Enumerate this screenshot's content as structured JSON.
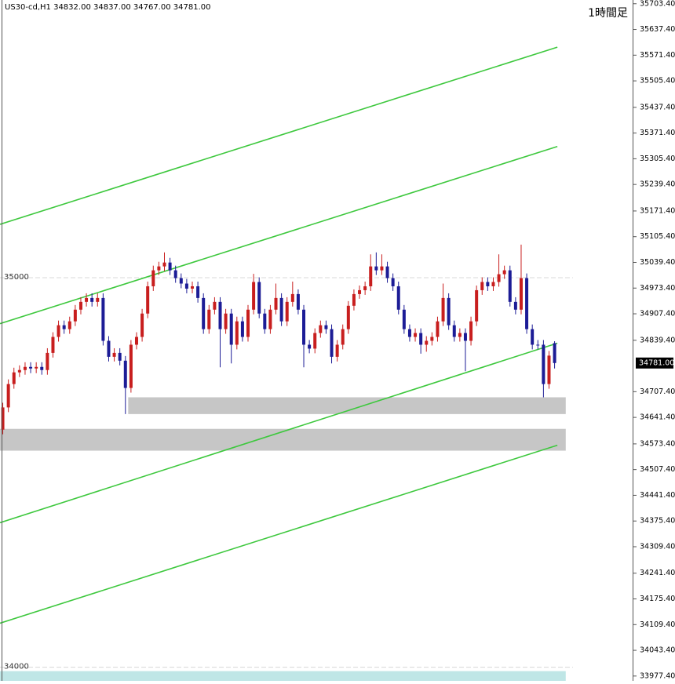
{
  "chart_data": {
    "type": "candlestick",
    "header": "US30-cd,H1  34832.00 34837.00 34767.00 34781.00",
    "title": "1時間足",
    "xlim": [
      -0.5,
      113
    ],
    "ylim": [
      33965,
      35713
    ],
    "yticks": [
      {
        "value": 35703.4,
        "label": "35703.40"
      },
      {
        "value": 35637.4,
        "label": "35637.40"
      },
      {
        "value": 35571.4,
        "label": "35571.40"
      },
      {
        "value": 35505.4,
        "label": "35505.40"
      },
      {
        "value": 35437.4,
        "label": "35437.40"
      },
      {
        "value": 35371.4,
        "label": "35371.40"
      },
      {
        "value": 35305.4,
        "label": "35305.40"
      },
      {
        "value": 35239.4,
        "label": "35239.40"
      },
      {
        "value": 35171.4,
        "label": "35171.40"
      },
      {
        "value": 35105.4,
        "label": "35105.40"
      },
      {
        "value": 35039.4,
        "label": "35039.40"
      },
      {
        "value": 34973.4,
        "label": "34973.40"
      },
      {
        "value": 34907.4,
        "label": "34907.40"
      },
      {
        "value": 34839.4,
        "label": "34839.40"
      },
      {
        "value": 34707.4,
        "label": "34707.40"
      },
      {
        "value": 34641.4,
        "label": "34641.40"
      },
      {
        "value": 34573.4,
        "label": "34573.40"
      },
      {
        "value": 34507.4,
        "label": "34507.40"
      },
      {
        "value": 34441.4,
        "label": "34441.40"
      },
      {
        "value": 34375.4,
        "label": "34375.40"
      },
      {
        "value": 34309.4,
        "label": "34309.40"
      },
      {
        "value": 34241.4,
        "label": "34241.40"
      },
      {
        "value": 34175.4,
        "label": "34175.40"
      },
      {
        "value": 34109.4,
        "label": "34109.40"
      },
      {
        "value": 34043.4,
        "label": "34043.40"
      },
      {
        "value": 33977.4,
        "label": "33977.40"
      }
    ],
    "current_price": {
      "value": 34781,
      "label": "34781.00"
    },
    "up_color": "#c81e1e",
    "down_color": "#1c1c96",
    "levels": [
      {
        "value": 35000,
        "label": "35000"
      },
      {
        "value": 34000,
        "label": "34000"
      }
    ],
    "channel_color": "#3ec83e",
    "channels": [
      {
        "x": [
          -0.5,
          99.5
        ],
        "y": [
          35137,
          35592
        ]
      },
      {
        "x": [
          -0.5,
          99.5
        ],
        "y": [
          34882,
          35337
        ]
      },
      {
        "x": [
          -0.5,
          99.5
        ],
        "y": [
          34371,
          34832
        ]
      },
      {
        "x": [
          -0.5,
          99.5
        ],
        "y": [
          34113,
          34570
        ]
      }
    ],
    "zones": [
      {
        "x": [
          22.5,
          101
        ],
        "y": [
          34650,
          34693
        ],
        "color": "#c6c6c6"
      },
      {
        "x": [
          -0.5,
          101
        ],
        "y": [
          34556,
          34612
        ],
        "color": "#c6c6c6"
      },
      {
        "x": [
          -0.5,
          101
        ],
        "y": [
          33950,
          33990
        ],
        "color": "#bfe6e6"
      }
    ],
    "open": [
      34610,
      34667,
      34727,
      34757,
      34763,
      34771,
      34767,
      34771,
      34763,
      34807,
      34848,
      34878,
      34868,
      34888,
      34918,
      34938,
      34948,
      34938,
      34948,
      34838,
      34797,
      34807,
      34787,
      34717,
      34828,
      34848,
      34908,
      34978,
      35019,
      35029,
      35039,
      35019,
      34999,
      34985,
      34972,
      34978,
      34948,
      34868,
      34918,
      34938,
      34868,
      34908,
      34828,
      34888,
      34848,
      34918,
      34989,
      34908,
      34868,
      34918,
      34948,
      34888,
      34938,
      34958,
      34918,
      34828,
      34818,
      34858,
      34878,
      34868,
      34797,
      34828,
      34868,
      34928,
      34958,
      34968,
      34978,
      35029,
      35019,
      35029,
      34999,
      34978,
      34918,
      34868,
      34848,
      34858,
      34828,
      34838,
      34848,
      34888,
      34948,
      34878,
      34848,
      34858,
      34838,
      34888,
      34968,
      34989,
      34978,
      34989,
      35009,
      35019,
      34938,
      34918,
      34999,
      34868,
      34828,
      34828,
      34727,
      34832
    ],
    "high": [
      34679,
      34739,
      34769,
      34775,
      34783,
      34783,
      34783,
      34783,
      34819,
      34860,
      34890,
      34890,
      34900,
      34930,
      34950,
      34960,
      34960,
      34960,
      34960,
      34850,
      34819,
      34819,
      34799,
      34840,
      34860,
      34920,
      34990,
      35031,
      35041,
      35065,
      35051,
      35031,
      35011,
      34997,
      34990,
      34990,
      34960,
      34930,
      34950,
      34950,
      34920,
      34920,
      34900,
      34900,
      34930,
      35010,
      35001,
      34920,
      34930,
      34985,
      34960,
      34950,
      34990,
      34970,
      34930,
      34840,
      34870,
      34890,
      34890,
      34880,
      34840,
      34880,
      34940,
      34970,
      34980,
      34990,
      35060,
      35065,
      35060,
      35041,
      35011,
      34990,
      34930,
      34880,
      34870,
      34870,
      34850,
      34860,
      34900,
      34985,
      34960,
      34890,
      34870,
      34870,
      34900,
      34980,
      35001,
      35001,
      35001,
      35060,
      35031,
      35031,
      34950,
      35085,
      35011,
      34880,
      34840,
      34840,
      34812,
      34837
    ],
    "low": [
      34598,
      34655,
      34715,
      34745,
      34751,
      34755,
      34755,
      34751,
      34751,
      34795,
      34836,
      34856,
      34856,
      34876,
      34906,
      34926,
      34926,
      34926,
      34826,
      34785,
      34785,
      34775,
      34650,
      34705,
      34816,
      34836,
      34896,
      34966,
      35007,
      35017,
      35007,
      34987,
      34973,
      34960,
      34960,
      34936,
      34856,
      34856,
      34906,
      34770,
      34856,
      34780,
      34816,
      34836,
      34836,
      34906,
      34896,
      34856,
      34856,
      34906,
      34876,
      34876,
      34926,
      34906,
      34770,
      34806,
      34806,
      34846,
      34856,
      34780,
      34785,
      34816,
      34856,
      34916,
      34946,
      34956,
      34966,
      35007,
      35007,
      34987,
      34966,
      34906,
      34856,
      34836,
      34836,
      34805,
      34810,
      34826,
      34836,
      34876,
      34866,
      34836,
      34836,
      34760,
      34826,
      34876,
      34956,
      34966,
      34966,
      34977,
      34997,
      34926,
      34906,
      34906,
      34856,
      34816,
      34816,
      34693,
      34715,
      34767
    ],
    "close": [
      34667,
      34727,
      34757,
      34763,
      34771,
      34767,
      34771,
      34763,
      34807,
      34848,
      34878,
      34868,
      34888,
      34918,
      34938,
      34948,
      34938,
      34948,
      34838,
      34797,
      34807,
      34787,
      34717,
      34828,
      34848,
      34908,
      34978,
      35019,
      35029,
      35039,
      35019,
      34999,
      34985,
      34972,
      34978,
      34948,
      34868,
      34918,
      34938,
      34868,
      34908,
      34828,
      34888,
      34848,
      34918,
      34989,
      34908,
      34868,
      34918,
      34948,
      34888,
      34938,
      34958,
      34918,
      34828,
      34818,
      34858,
      34878,
      34868,
      34797,
      34828,
      34868,
      34928,
      34958,
      34968,
      34978,
      35029,
      35019,
      35029,
      34999,
      34978,
      34918,
      34868,
      34848,
      34858,
      34828,
      34838,
      34848,
      34888,
      34948,
      34878,
      34848,
      34858,
      34838,
      34888,
      34968,
      34989,
      34978,
      34989,
      35009,
      35019,
      34938,
      34918,
      34999,
      34868,
      34828,
      34828,
      34727,
      34800,
      34781
    ]
  }
}
